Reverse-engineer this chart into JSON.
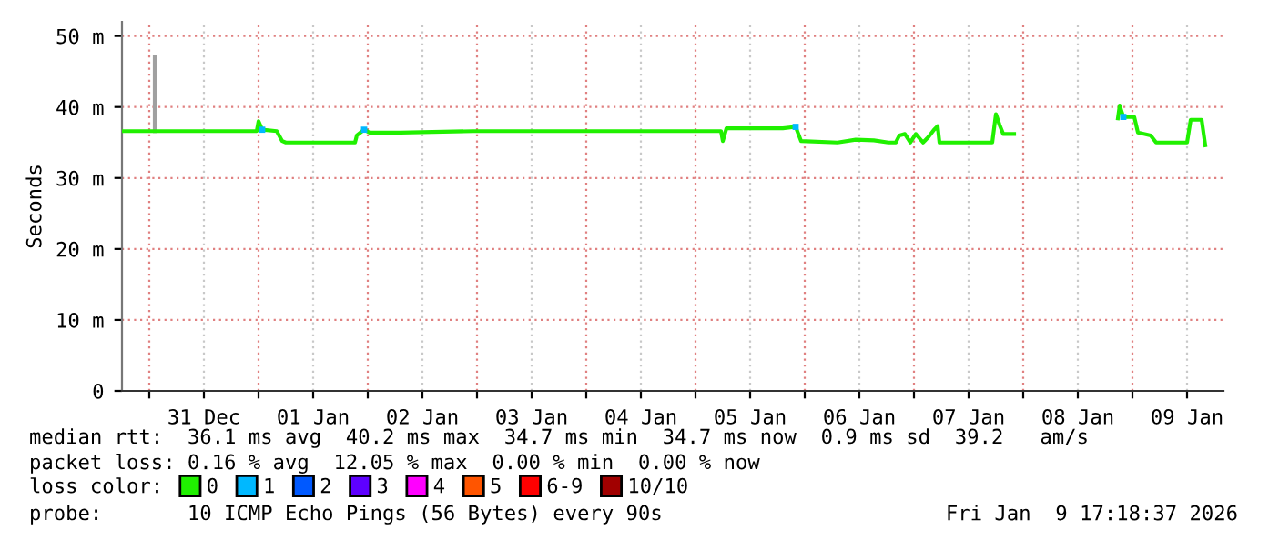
{
  "chart_data": {
    "type": "line",
    "ylabel": "Seconds",
    "xlim": [
      "2025-12-30T18:00",
      "2026-01-09T20:00"
    ],
    "xticks": [
      {
        "value": "2025-12-31T00:00",
        "label": null
      },
      {
        "value": "2025-12-31T12:00",
        "label": "31 Dec"
      },
      {
        "value": "2026-01-01T00:00",
        "label": null
      },
      {
        "value": "2026-01-01T12:00",
        "label": "01 Jan"
      },
      {
        "value": "2026-01-02T00:00",
        "label": null
      },
      {
        "value": "2026-01-02T12:00",
        "label": "02 Jan"
      },
      {
        "value": "2026-01-03T00:00",
        "label": null
      },
      {
        "value": "2026-01-03T12:00",
        "label": "03 Jan"
      },
      {
        "value": "2026-01-04T00:00",
        "label": null
      },
      {
        "value": "2026-01-04T12:00",
        "label": "04 Jan"
      },
      {
        "value": "2026-01-05T00:00",
        "label": null
      },
      {
        "value": "2026-01-05T12:00",
        "label": "05 Jan"
      },
      {
        "value": "2026-01-06T00:00",
        "label": null
      },
      {
        "value": "2026-01-06T12:00",
        "label": "06 Jan"
      },
      {
        "value": "2026-01-07T00:00",
        "label": null
      },
      {
        "value": "2026-01-07T12:00",
        "label": "07 Jan"
      },
      {
        "value": "2026-01-08T00:00",
        "label": null
      },
      {
        "value": "2026-01-08T12:00",
        "label": "08 Jan"
      },
      {
        "value": "2026-01-09T00:00",
        "label": null
      },
      {
        "value": "2026-01-09T12:00",
        "label": "09 Jan"
      }
    ],
    "ylim": [
      0,
      52
    ],
    "yticks": [
      {
        "value": 0,
        "label": "0"
      },
      {
        "value": 10,
        "label": "10 m"
      },
      {
        "value": 20,
        "label": "20 m"
      },
      {
        "value": 30,
        "label": "30 m"
      },
      {
        "value": 40,
        "label": "40 m"
      },
      {
        "value": 50,
        "label": "50 m"
      }
    ],
    "grid": true,
    "legend": "bottom",
    "legend_title": "loss color:",
    "marker": "none",
    "line_style": "solid",
    "series": [
      {
        "color": "#a0a0a0",
        "x": [
          "2025-12-31T01:12",
          "2025-12-31T01:12"
        ],
        "values": [
          36.6,
          47
        ]
      },
      {
        "name": "0",
        "color": "#20f000",
        "x": [
          "2025-12-30T18:00",
          "2025-12-31T23:36",
          "2026-01-01T00:00",
          "2026-01-01T00:48",
          "2026-01-01T04:00",
          "2026-01-01T05:12",
          "2026-01-01T06:00",
          "2026-01-01T21:12",
          "2026-01-01T21:36",
          "2026-01-01T23:12",
          "2026-01-02T00:24",
          "2026-01-02T07:12",
          "2026-01-02T23:12",
          "2026-01-05T05:36",
          "2026-01-05T06:00",
          "2026-01-05T06:48",
          "2026-01-05T19:12",
          "2026-01-05T22:00",
          "2026-01-05T23:12",
          "2026-01-06T07:12",
          "2026-01-06T11:12",
          "2026-01-06T15:12",
          "2026-01-06T18:24",
          "2026-01-06T20:00",
          "2026-01-06T20:48",
          "2026-01-06T22:00",
          "2026-01-06T23:12",
          "2026-01-07T00:24",
          "2026-01-07T02:00",
          "2026-01-07T03:12",
          "2026-01-07T04:24",
          "2026-01-07T05:12",
          "2026-01-07T05:36",
          "2026-01-07T17:12",
          "2026-01-07T18:00",
          "2026-01-07T18:48",
          "2026-01-07T19:36",
          "2026-01-07T22:00",
          "2026-01-08T09:12",
          "2026-01-08T20:48",
          "2026-01-08T21:12",
          "2026-01-08T22:00",
          "2026-01-09T00:24",
          "2026-01-09T01:12",
          "2026-01-09T04:00",
          "2026-01-09T05:12",
          "2026-01-09T12:00",
          "2026-01-09T12:48",
          "2026-01-09T15:12",
          "2026-01-09T16:00"
        ],
        "values": [
          36.6,
          36.6,
          38,
          36.8,
          36.6,
          35.2,
          35,
          35,
          36,
          36.8,
          36.4,
          36.4,
          36.6,
          36.6,
          35.2,
          37,
          37,
          37.2,
          35.2,
          35,
          35.4,
          35.3,
          35,
          35,
          36,
          36.2,
          35,
          36.2,
          35,
          35.8,
          36.8,
          37.3,
          35,
          35,
          39,
          37.5,
          36.2,
          36.2,
          null,
          38.4,
          40.2,
          38.6,
          38.6,
          36.4,
          36,
          35,
          35,
          38.2,
          38.2,
          34.6
        ]
      },
      {
        "name": "1",
        "color": "#00b8ff",
        "type": "scatter",
        "marker": "square",
        "x": [
          "2026-01-01T00:48",
          "2026-01-01T23:12",
          "2026-01-05T22:00",
          "2026-01-08T22:00"
        ],
        "values": [
          36.8,
          36.8,
          37.2,
          38.6
        ]
      },
      {
        "name": "2",
        "color": "#0059ff"
      },
      {
        "name": "3",
        "color": "#5e00ff"
      },
      {
        "name": "4",
        "color": "#ff00ff"
      },
      {
        "name": "5",
        "color": "#ff5500"
      },
      {
        "name": "6-9",
        "color": "#ff0000"
      },
      {
        "name": "10/10",
        "color": "#a10000"
      }
    ],
    "annotations": [
      "median rtt:  36.1 ms avg  40.2 ms max  34.7 ms min  34.7 ms now  0.9 ms sd  39.2   am/s",
      "packet loss: 0.16 % avg  12.05 % max  0.00 % min  0.00 % now",
      "probe:       10 ICMP Echo Pings (56 Bytes) every 90s",
      "Fri Jan  9 17:18:37 2026"
    ]
  }
}
